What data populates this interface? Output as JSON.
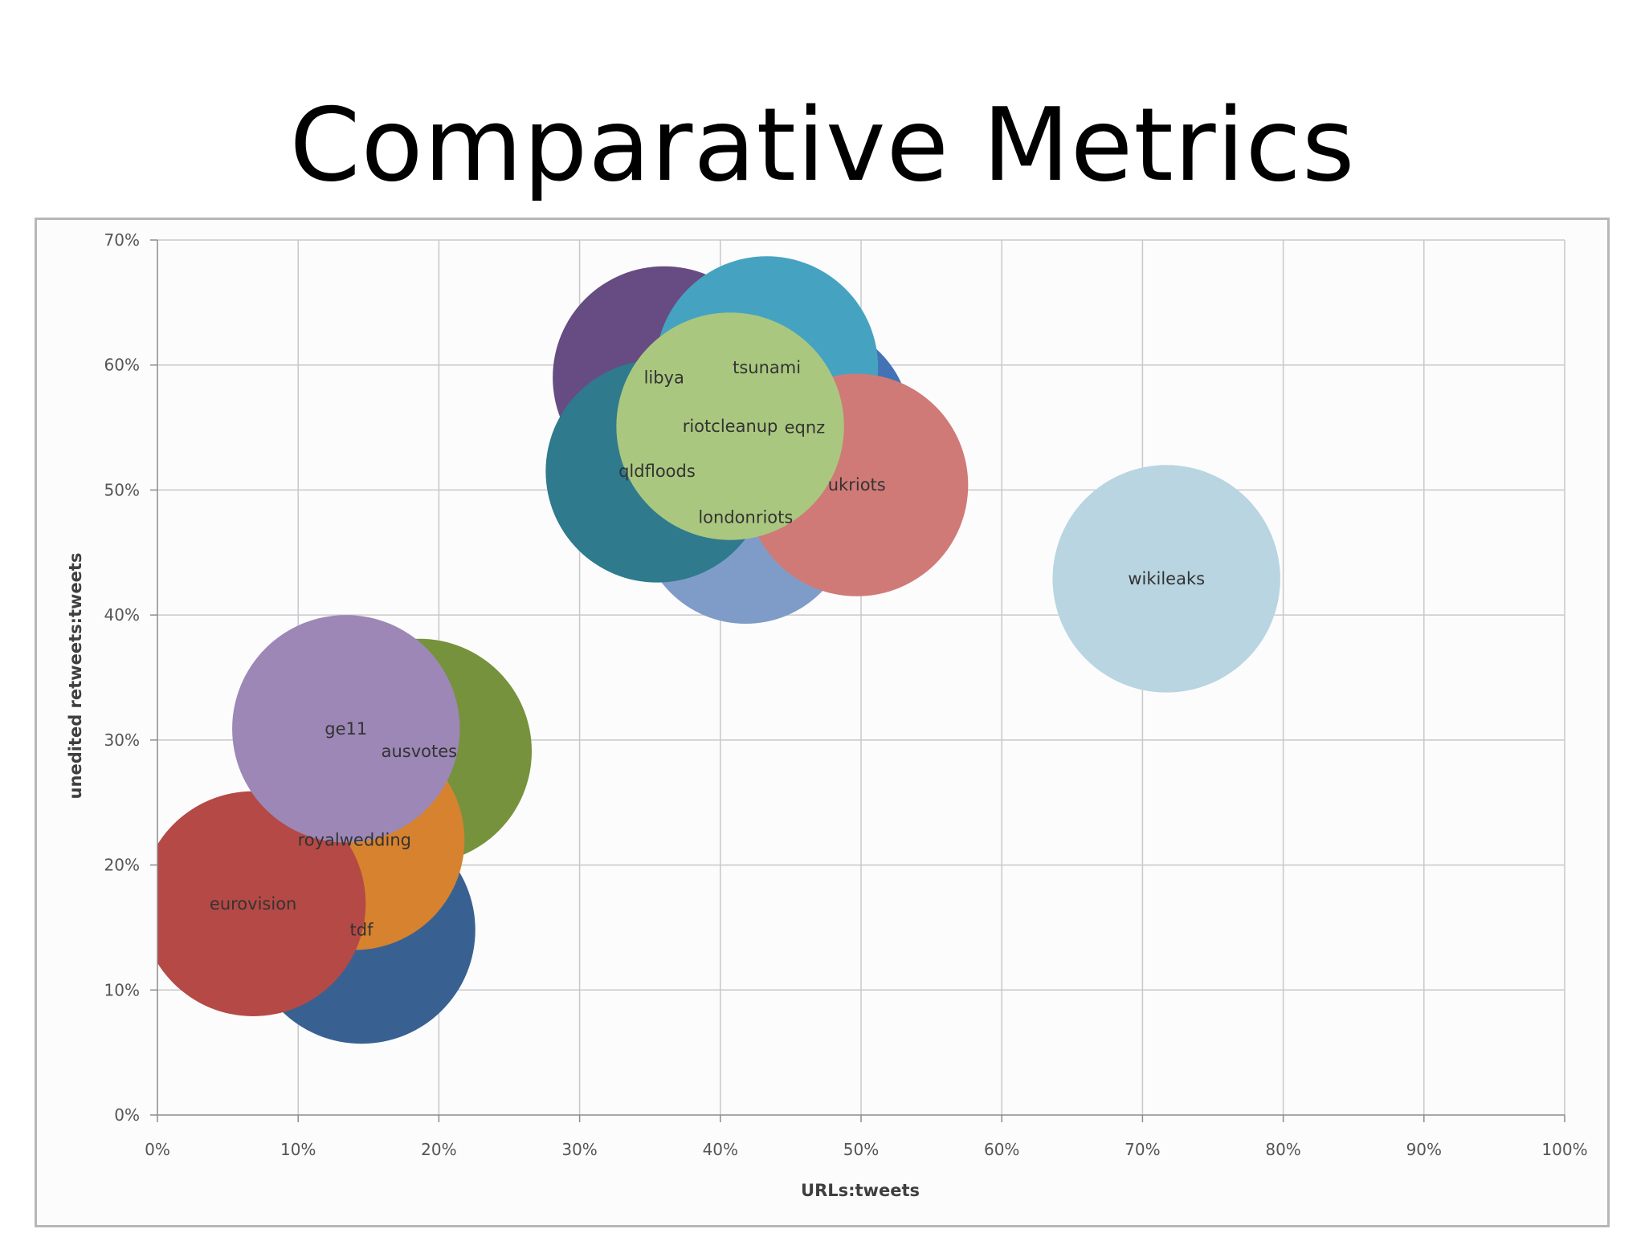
{
  "slide": {
    "title": "Comparative Metrics"
  },
  "chart_data": {
    "type": "bubble",
    "xlabel": "URLs:tweets",
    "ylabel": "unedited retweets:tweets",
    "xlim": [
      0,
      100
    ],
    "ylim": [
      0,
      70
    ],
    "x_ticks": [
      "0%",
      "10%",
      "20%",
      "30%",
      "40%",
      "50%",
      "60%",
      "70%",
      "80%",
      "90%",
      "100%"
    ],
    "y_ticks": [
      "0%",
      "10%",
      "20%",
      "30%",
      "40%",
      "50%",
      "60%",
      "70%"
    ],
    "grid": true,
    "legend": "none",
    "series": [
      {
        "name": "tdf",
        "x": 14.5,
        "y": 14.8,
        "size": 9.1,
        "color": "#386192"
      },
      {
        "name": "ausvotes",
        "x": 18.6,
        "y": 29.1,
        "size": 9.0,
        "color": "#76923c"
      },
      {
        "name": "royalwedding",
        "x": 14.0,
        "y": 22.0,
        "size": 8.8,
        "color": "#d6822f"
      },
      {
        "name": "eurovision",
        "x": 6.8,
        "y": 16.9,
        "size": 9.0,
        "color": "#b54946"
      },
      {
        "name": "ge11",
        "x": 13.4,
        "y": 30.9,
        "size": 9.1,
        "color": "#9c87b6"
      },
      {
        "name": "libya",
        "x": 36.0,
        "y": 59.0,
        "size": 8.9,
        "color": "#664c82"
      },
      {
        "name": "eqnz",
        "x": 46.0,
        "y": 55.0,
        "size": 8.5,
        "color": "#4372b6"
      },
      {
        "name": "londonriots",
        "x": 41.8,
        "y": 47.8,
        "size": 8.5,
        "color": "#7f9cc8"
      },
      {
        "name": "qldfloods",
        "x": 35.5,
        "y": 51.5,
        "size": 8.9,
        "color": "#2f7a8d"
      },
      {
        "name": "tsunami",
        "x": 43.3,
        "y": 59.8,
        "size": 8.9,
        "color": "#45a3c1"
      },
      {
        "name": "ukriots",
        "x": 49.7,
        "y": 50.4,
        "size": 8.9,
        "color": "#d07a78"
      },
      {
        "name": "riotcleanup",
        "x": 40.7,
        "y": 55.1,
        "size": 9.1,
        "color": "#aac77f"
      },
      {
        "name": "wikileaks",
        "x": 71.7,
        "y": 42.9,
        "size": 9.1,
        "color": "#b8d5e1"
      }
    ]
  }
}
